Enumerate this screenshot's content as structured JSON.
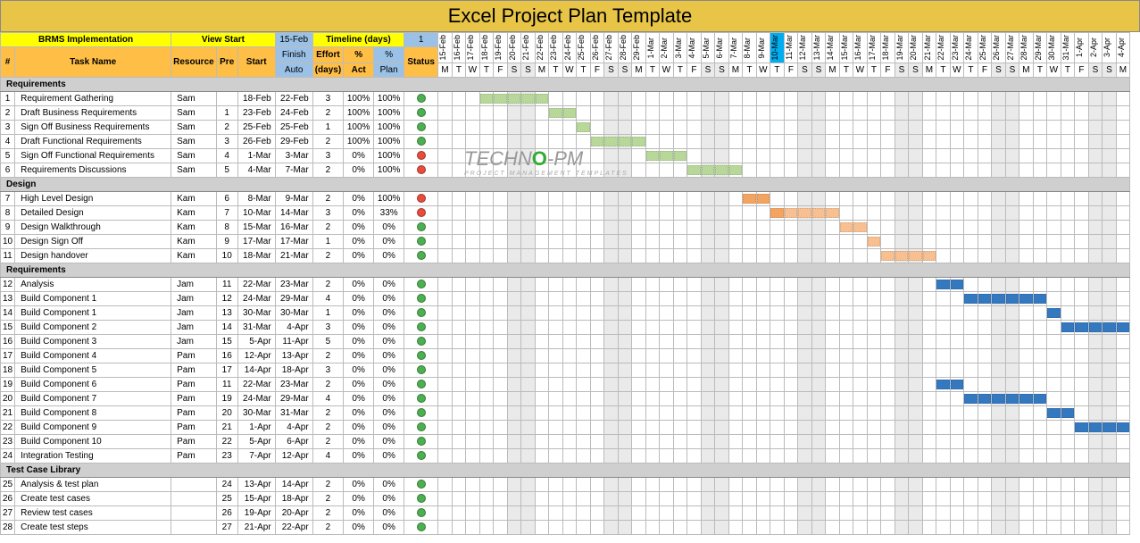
{
  "title": "Excel Project Plan Template",
  "header": {
    "project_name": "BRMS Implementation",
    "view_start_label": "View Start",
    "view_start_date": "15-Feb",
    "timeline_label": "Timeline (days)",
    "timeline_value": "1",
    "row1": {
      "num": "#",
      "task": "Task Name",
      "resource": "Resource",
      "pre": "Pre",
      "start": "Start",
      "finish": "Finish",
      "effort": "Effort",
      "pct_act": "%",
      "pct_plan": "%",
      "status": "Status"
    },
    "row2": {
      "auto": "Auto",
      "days": "(days)",
      "act": "Act",
      "plan": "Plan"
    }
  },
  "timeline": {
    "start_date": "2016-02-15",
    "days": 50,
    "highlight_index": 24,
    "date_labels": [
      "15-Feb",
      "16-Feb",
      "17-Feb",
      "18-Feb",
      "19-Feb",
      "20-Feb",
      "21-Feb",
      "22-Feb",
      "23-Feb",
      "24-Feb",
      "25-Feb",
      "26-Feb",
      "27-Feb",
      "28-Feb",
      "29-Feb",
      "1-Mar",
      "2-Mar",
      "3-Mar",
      "4-Mar",
      "5-Mar",
      "6-Mar",
      "7-Mar",
      "8-Mar",
      "9-Mar",
      "10-Mar",
      "11-Mar",
      "12-Mar",
      "13-Mar",
      "14-Mar",
      "15-Mar",
      "16-Mar",
      "17-Mar",
      "18-Mar",
      "19-Mar",
      "20-Mar",
      "21-Mar",
      "22-Mar",
      "23-Mar",
      "24-Mar",
      "25-Mar",
      "26-Mar",
      "27-Mar",
      "28-Mar",
      "29-Mar",
      "30-Mar",
      "31-Mar",
      "1-Apr",
      "2-Apr",
      "3-Apr",
      "4-Apr"
    ],
    "weekday_labels": [
      "M",
      "T",
      "W",
      "T",
      "F",
      "S",
      "S",
      "M",
      "T",
      "W",
      "T",
      "F",
      "S",
      "S",
      "M",
      "T",
      "W",
      "T",
      "F",
      "S",
      "S",
      "M",
      "T",
      "W",
      "T",
      "F",
      "S",
      "S",
      "M",
      "T",
      "W",
      "T",
      "F",
      "S",
      "S",
      "M",
      "T",
      "W",
      "T",
      "F",
      "S",
      "S",
      "M",
      "T",
      "W",
      "T",
      "F",
      "S",
      "S",
      "M"
    ],
    "weekend_indices": [
      5,
      6,
      12,
      13,
      19,
      20,
      26,
      27,
      33,
      34,
      40,
      41,
      47,
      48
    ]
  },
  "colors": {
    "complete": "#b8d89a",
    "partial_dark": "#f4a460",
    "partial_light": "#f8c090",
    "plan": "#3478c0",
    "status_green": "#4caf50",
    "status_red": "#e74c3c"
  },
  "sections": [
    {
      "name": "Requirements",
      "rows": [
        {
          "num": 1,
          "task": "Requirement Gathering",
          "resource": "Sam",
          "pre": "",
          "start": "18-Feb",
          "finish": "22-Feb",
          "effort": 3,
          "act": "100%",
          "plan": "100%",
          "status": "green",
          "bar": {
            "start": 3,
            "len": 5,
            "color": "complete"
          }
        },
        {
          "num": 2,
          "task": "Draft Business Requirements",
          "resource": "Sam",
          "pre": 1,
          "start": "23-Feb",
          "finish": "24-Feb",
          "effort": 2,
          "act": "100%",
          "plan": "100%",
          "status": "green",
          "bar": {
            "start": 8,
            "len": 2,
            "color": "complete"
          }
        },
        {
          "num": 3,
          "task": "Sign Off Business Requirements",
          "resource": "Sam",
          "pre": 2,
          "start": "25-Feb",
          "finish": "25-Feb",
          "effort": 1,
          "act": "100%",
          "plan": "100%",
          "status": "green",
          "bar": {
            "start": 10,
            "len": 1,
            "color": "complete"
          }
        },
        {
          "num": 4,
          "task": "Draft Functional Requirements",
          "resource": "Sam",
          "pre": 3,
          "start": "26-Feb",
          "finish": "29-Feb",
          "effort": 2,
          "act": "100%",
          "plan": "100%",
          "status": "green",
          "bar": {
            "start": 11,
            "len": 4,
            "color": "complete"
          }
        },
        {
          "num": 5,
          "task": "Sign Off Functional Requirements",
          "resource": "Sam",
          "pre": 4,
          "start": "1-Mar",
          "finish": "3-Mar",
          "effort": 3,
          "act": "0%",
          "plan": "100%",
          "status": "red",
          "bar": {
            "start": 15,
            "len": 3,
            "color": "complete"
          }
        },
        {
          "num": 6,
          "task": "Requirements Discussions",
          "resource": "Sam",
          "pre": 5,
          "start": "4-Mar",
          "finish": "7-Mar",
          "effort": 2,
          "act": "0%",
          "plan": "100%",
          "status": "red",
          "bar": {
            "start": 18,
            "len": 4,
            "color": "complete"
          }
        }
      ]
    },
    {
      "name": "Design",
      "rows": [
        {
          "num": 7,
          "task": "High Level Design",
          "resource": "Kam",
          "pre": 6,
          "start": "8-Mar",
          "finish": "9-Mar",
          "effort": 2,
          "act": "0%",
          "plan": "100%",
          "status": "red",
          "bar": {
            "start": 22,
            "len": 2,
            "color": "partial_dark"
          }
        },
        {
          "num": 8,
          "task": "Detailed Design",
          "resource": "Kam",
          "pre": 7,
          "start": "10-Mar",
          "finish": "14-Mar",
          "effort": 3,
          "act": "0%",
          "plan": "33%",
          "status": "red",
          "bar": {
            "start": 24,
            "len": 5,
            "color": "partial_mix"
          }
        },
        {
          "num": 9,
          "task": "Design Walkthrough",
          "resource": "Kam",
          "pre": 8,
          "start": "15-Mar",
          "finish": "16-Mar",
          "effort": 2,
          "act": "0%",
          "plan": "0%",
          "status": "green",
          "bar": {
            "start": 29,
            "len": 2,
            "color": "partial_light"
          }
        },
        {
          "num": 10,
          "task": "Design Sign Off",
          "resource": "Kam",
          "pre": 9,
          "start": "17-Mar",
          "finish": "17-Mar",
          "effort": 1,
          "act": "0%",
          "plan": "0%",
          "status": "green",
          "bar": {
            "start": 31,
            "len": 1,
            "color": "partial_light"
          }
        },
        {
          "num": 11,
          "task": "Design handover",
          "resource": "Kam",
          "pre": 10,
          "start": "18-Mar",
          "finish": "21-Mar",
          "effort": 2,
          "act": "0%",
          "plan": "0%",
          "status": "green",
          "bar": {
            "start": 32,
            "len": 4,
            "color": "partial_light"
          }
        }
      ]
    },
    {
      "name": "Requirements",
      "rows": [
        {
          "num": 12,
          "task": "Analysis",
          "resource": "Jam",
          "pre": 11,
          "start": "22-Mar",
          "finish": "23-Mar",
          "effort": 2,
          "act": "0%",
          "plan": "0%",
          "status": "green",
          "bar": {
            "start": 36,
            "len": 2,
            "color": "plan"
          }
        },
        {
          "num": 13,
          "task": "Build Component 1",
          "resource": "Jam",
          "pre": 12,
          "start": "24-Mar",
          "finish": "29-Mar",
          "effort": 4,
          "act": "0%",
          "plan": "0%",
          "status": "green",
          "bar": {
            "start": 38,
            "len": 6,
            "color": "plan"
          }
        },
        {
          "num": 14,
          "task": "Build Component 1",
          "resource": "Jam",
          "pre": 13,
          "start": "30-Mar",
          "finish": "30-Mar",
          "effort": 1,
          "act": "0%",
          "plan": "0%",
          "status": "green",
          "bar": {
            "start": 44,
            "len": 1,
            "color": "plan"
          }
        },
        {
          "num": 15,
          "task": "Build Component 2",
          "resource": "Jam",
          "pre": 14,
          "start": "31-Mar",
          "finish": "4-Apr",
          "effort": 3,
          "act": "0%",
          "plan": "0%",
          "status": "green",
          "bar": {
            "start": 45,
            "len": 5,
            "color": "plan"
          }
        },
        {
          "num": 16,
          "task": "Build Component 3",
          "resource": "Jam",
          "pre": 15,
          "start": "5-Apr",
          "finish": "11-Apr",
          "effort": 5,
          "act": "0%",
          "plan": "0%",
          "status": "green",
          "bar": null
        },
        {
          "num": 17,
          "task": "Build Component 4",
          "resource": "Pam",
          "pre": 16,
          "start": "12-Apr",
          "finish": "13-Apr",
          "effort": 2,
          "act": "0%",
          "plan": "0%",
          "status": "green",
          "bar": null
        },
        {
          "num": 18,
          "task": "Build Component 5",
          "resource": "Pam",
          "pre": 17,
          "start": "14-Apr",
          "finish": "18-Apr",
          "effort": 3,
          "act": "0%",
          "plan": "0%",
          "status": "green",
          "bar": null
        },
        {
          "num": 19,
          "task": "Build Component 6",
          "resource": "Pam",
          "pre": 11,
          "start": "22-Mar",
          "finish": "23-Mar",
          "effort": 2,
          "act": "0%",
          "plan": "0%",
          "status": "green",
          "bar": {
            "start": 36,
            "len": 2,
            "color": "plan"
          }
        },
        {
          "num": 20,
          "task": "Build Component 7",
          "resource": "Pam",
          "pre": 19,
          "start": "24-Mar",
          "finish": "29-Mar",
          "effort": 4,
          "act": "0%",
          "plan": "0%",
          "status": "green",
          "bar": {
            "start": 38,
            "len": 6,
            "color": "plan"
          }
        },
        {
          "num": 21,
          "task": "Build Component 8",
          "resource": "Pam",
          "pre": 20,
          "start": "30-Mar",
          "finish": "31-Mar",
          "effort": 2,
          "act": "0%",
          "plan": "0%",
          "status": "green",
          "bar": {
            "start": 44,
            "len": 2,
            "color": "plan"
          }
        },
        {
          "num": 22,
          "task": "Build Component 9",
          "resource": "Pam",
          "pre": 21,
          "start": "1-Apr",
          "finish": "4-Apr",
          "effort": 2,
          "act": "0%",
          "plan": "0%",
          "status": "green",
          "bar": {
            "start": 46,
            "len": 4,
            "color": "plan"
          }
        },
        {
          "num": 23,
          "task": "Build Component 10",
          "resource": "Pam",
          "pre": 22,
          "start": "5-Apr",
          "finish": "6-Apr",
          "effort": 2,
          "act": "0%",
          "plan": "0%",
          "status": "green",
          "bar": null
        },
        {
          "num": 24,
          "task": "Integration Testing",
          "resource": "Pam",
          "pre": 23,
          "start": "7-Apr",
          "finish": "12-Apr",
          "effort": 4,
          "act": "0%",
          "plan": "0%",
          "status": "green",
          "bar": null
        }
      ]
    },
    {
      "name": "Test Case Library",
      "rows": [
        {
          "num": 25,
          "task": "Analysis & test plan",
          "resource": "",
          "pre": 24,
          "start": "13-Apr",
          "finish": "14-Apr",
          "effort": 2,
          "act": "0%",
          "plan": "0%",
          "status": "green",
          "bar": null
        },
        {
          "num": 26,
          "task": "Create test cases",
          "resource": "",
          "pre": 25,
          "start": "15-Apr",
          "finish": "18-Apr",
          "effort": 2,
          "act": "0%",
          "plan": "0%",
          "status": "green",
          "bar": null
        },
        {
          "num": 27,
          "task": "Review test cases",
          "resource": "",
          "pre": 26,
          "start": "19-Apr",
          "finish": "20-Apr",
          "effort": 2,
          "act": "0%",
          "plan": "0%",
          "status": "green",
          "bar": null
        },
        {
          "num": 28,
          "task": "Create test steps",
          "resource": "",
          "pre": 27,
          "start": "21-Apr",
          "finish": "22-Apr",
          "effort": 2,
          "act": "0%",
          "plan": "0%",
          "status": "green",
          "bar": null
        }
      ]
    }
  ]
}
